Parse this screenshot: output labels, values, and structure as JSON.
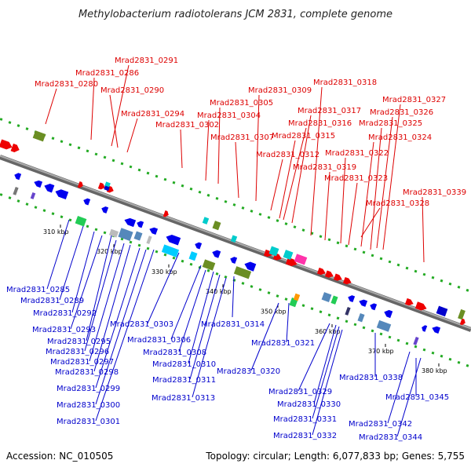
{
  "title": "Methylobacterium radiotolerans JCM 2831, complete genome",
  "footer": {
    "accession": "Accession: NC_010505",
    "topology": "Topology: circular; Length: 6,077,833 bp; Genes: 5,755"
  },
  "colors": {
    "top_labels": "#dd0000",
    "bottom_labels": "#0000cc",
    "backbone": "#888888",
    "dots": "#22aa22"
  },
  "kbp_marks": [
    "310 kbp",
    "320 kbp",
    "330 kbp",
    "340 kbp",
    "350 kbp",
    "360 kbp",
    "370 kbp",
    "380 kbp"
  ],
  "top_labels": [
    "Mrad2831_0280",
    "Mrad2831_0286",
    "Mrad2831_0291",
    "Mrad2831_0290",
    "Mrad2831_0294",
    "Mrad2831_0302",
    "Mrad2831_0304",
    "Mrad2831_0305",
    "Mrad2831_0307",
    "Mrad2831_0309",
    "Mrad2831_0312",
    "Mrad2831_0315",
    "Mrad2831_0316",
    "Mrad2831_0317",
    "Mrad2831_0318",
    "Mrad2831_0319",
    "Mrad2831_0322",
    "Mrad2831_0323",
    "Mrad2831_0324",
    "Mrad2831_0325",
    "Mrad2831_0326",
    "Mrad2831_0327",
    "Mrad2831_0328",
    "Mrad2831_0339"
  ],
  "bottom_labels": [
    "Mrad2831_0285",
    "Mrad2831_0289",
    "Mrad2831_0292",
    "Mrad2831_0293",
    "Mrad2831_0295",
    "Mrad2831_0296",
    "Mrad2831_0297",
    "Mrad2831_0298",
    "Mrad2831_0299",
    "Mrad2831_0300",
    "Mrad2831_0301",
    "Mrad2831_0303",
    "Mrad2831_0306",
    "Mrad2831_0308",
    "Mrad2831_0310",
    "Mrad2831_0311",
    "Mrad2831_0313",
    "Mrad2831_0314",
    "Mrad2831_0320",
    "Mrad2831_0321",
    "Mrad2831_0329",
    "Mrad2831_0330",
    "Mrad2831_0331",
    "Mrad2831_0332",
    "Mrad2831_0338",
    "Mrad2831_0345",
    "Mrad2831_0342",
    "Mrad2831_0344"
  ]
}
